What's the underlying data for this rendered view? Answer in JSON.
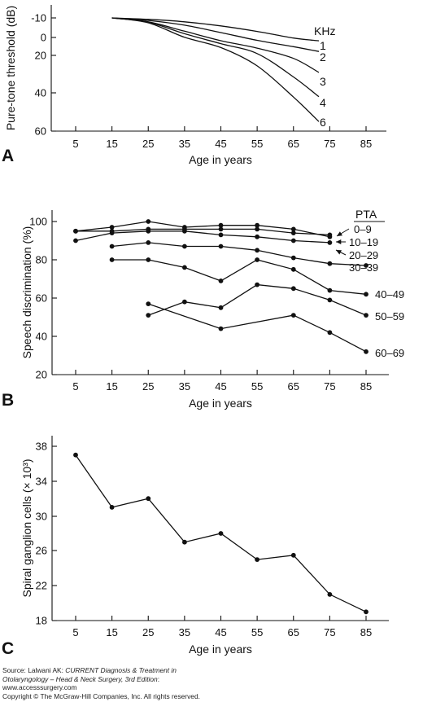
{
  "chart_data": [
    {
      "panel": "A",
      "type": "line",
      "title": "",
      "xlabel": "Age in years",
      "ylabel": "Pure-tone threshold (dB)",
      "x_ticks": [
        5,
        15,
        25,
        35,
        45,
        55,
        65,
        75,
        85
      ],
      "y_ticks": [
        "-10",
        "0",
        "20",
        "40",
        "60"
      ],
      "xlim": [
        0,
        90
      ],
      "ylim": [
        60,
        -10
      ],
      "legend_title": "KHz",
      "grid": false,
      "series": [
        {
          "name": "1",
          "x": [
            15,
            25,
            35,
            45,
            55,
            65,
            72
          ],
          "y": [
            -10,
            -9.3,
            -8,
            -5.9,
            -3.1,
            0.6,
            3.7
          ]
        },
        {
          "name": "2",
          "x": [
            15,
            25,
            35,
            45,
            55,
            65,
            72
          ],
          "y": [
            -10,
            -8.7,
            -6.3,
            -2.5,
            3.2,
            10.3,
            15.6
          ]
        },
        {
          "name": "3",
          "x": [
            15,
            25,
            35,
            45,
            55,
            65,
            72
          ],
          "y": [
            -10,
            -8,
            -3.2,
            3.6,
            11.9,
            21.6,
            29.1
          ]
        },
        {
          "name": "4",
          "x": [
            15,
            25,
            35,
            45,
            55,
            65,
            72
          ],
          "y": [
            -10,
            -7.8,
            -1.9,
            6.9,
            18,
            31.5,
            42
          ]
        },
        {
          "name": "6",
          "x": [
            15,
            25,
            35,
            45,
            55,
            65,
            72
          ],
          "y": [
            -10,
            -7.5,
            -0.1,
            11.3,
            25.6,
            42.2,
            55
          ]
        }
      ]
    },
    {
      "panel": "B",
      "type": "line",
      "title": "",
      "xlabel": "Age in years",
      "ylabel": "Speech discrimination (%)",
      "x_ticks": [
        5,
        15,
        25,
        35,
        45,
        55,
        65,
        75,
        85
      ],
      "y_ticks": [
        "20",
        "40",
        "60",
        "80",
        "100"
      ],
      "xlim": [
        0,
        90
      ],
      "ylim": [
        20,
        100
      ],
      "legend_title": "PTA",
      "grid": false,
      "series": [
        {
          "name": "0–9",
          "x": [
            5,
            15,
            25,
            35,
            45,
            55,
            65,
            75
          ],
          "y": [
            95,
            97,
            100,
            97,
            98,
            98,
            96,
            92
          ]
        },
        {
          "name": "10–19",
          "x": [
            5,
            15,
            25,
            35,
            45,
            55,
            65,
            75
          ],
          "y": [
            90,
            94,
            95,
            95,
            93,
            92,
            90,
            89
          ]
        },
        {
          "name": "20–29",
          "x": [
            5,
            15,
            25,
            35,
            45,
            55,
            65,
            75
          ],
          "y": [
            95,
            95,
            96,
            96,
            96,
            96,
            94,
            93
          ]
        },
        {
          "name": "30–39",
          "x": [
            15,
            25,
            35,
            45,
            55,
            65,
            75,
            85
          ],
          "y": [
            87,
            89,
            87,
            87,
            85,
            81,
            78,
            77
          ]
        },
        {
          "name": "40–49",
          "x": [
            15,
            25,
            35,
            45,
            55,
            65,
            75,
            85
          ],
          "y": [
            80,
            80,
            76,
            69,
            80,
            75,
            64,
            62
          ]
        },
        {
          "name": "50–59",
          "x": [
            25,
            35,
            45,
            55,
            65,
            75,
            85
          ],
          "y": [
            51,
            58,
            55,
            67,
            65,
            59,
            51
          ]
        },
        {
          "name": "60–69",
          "x": [
            25,
            45,
            65,
            75,
            85
          ],
          "y": [
            57,
            44,
            51,
            42,
            32
          ]
        }
      ]
    },
    {
      "panel": "C",
      "type": "line",
      "title": "",
      "xlabel": "Age in years",
      "ylabel": "Spiral ganglion cells (× 10³)",
      "x_ticks": [
        5,
        15,
        25,
        35,
        45,
        55,
        65,
        75,
        85
      ],
      "y_ticks": [
        "18",
        "22",
        "26",
        "30",
        "34",
        "38"
      ],
      "xlim": [
        0,
        90
      ],
      "ylim": [
        18,
        38
      ],
      "grid": false,
      "series": [
        {
          "name": "",
          "x": [
            5,
            15,
            25,
            35,
            45,
            55,
            65,
            75,
            85
          ],
          "y": [
            37,
            31,
            32,
            27,
            28,
            25,
            25.5,
            21,
            19
          ]
        }
      ]
    }
  ],
  "source": {
    "line1_prefix": "Source: Lalwani AK: ",
    "line1_title": "CURRENT Diagnosis & Treatment in",
    "line2_title": "Otolaryngology – Head & Neck Surgery, 3rd Edition",
    "line2_suffix": ":",
    "line3": "www.accesssurgery.com",
    "line4": "Copyright © The McGraw-Hill Companies, Inc. All rights reserved."
  }
}
